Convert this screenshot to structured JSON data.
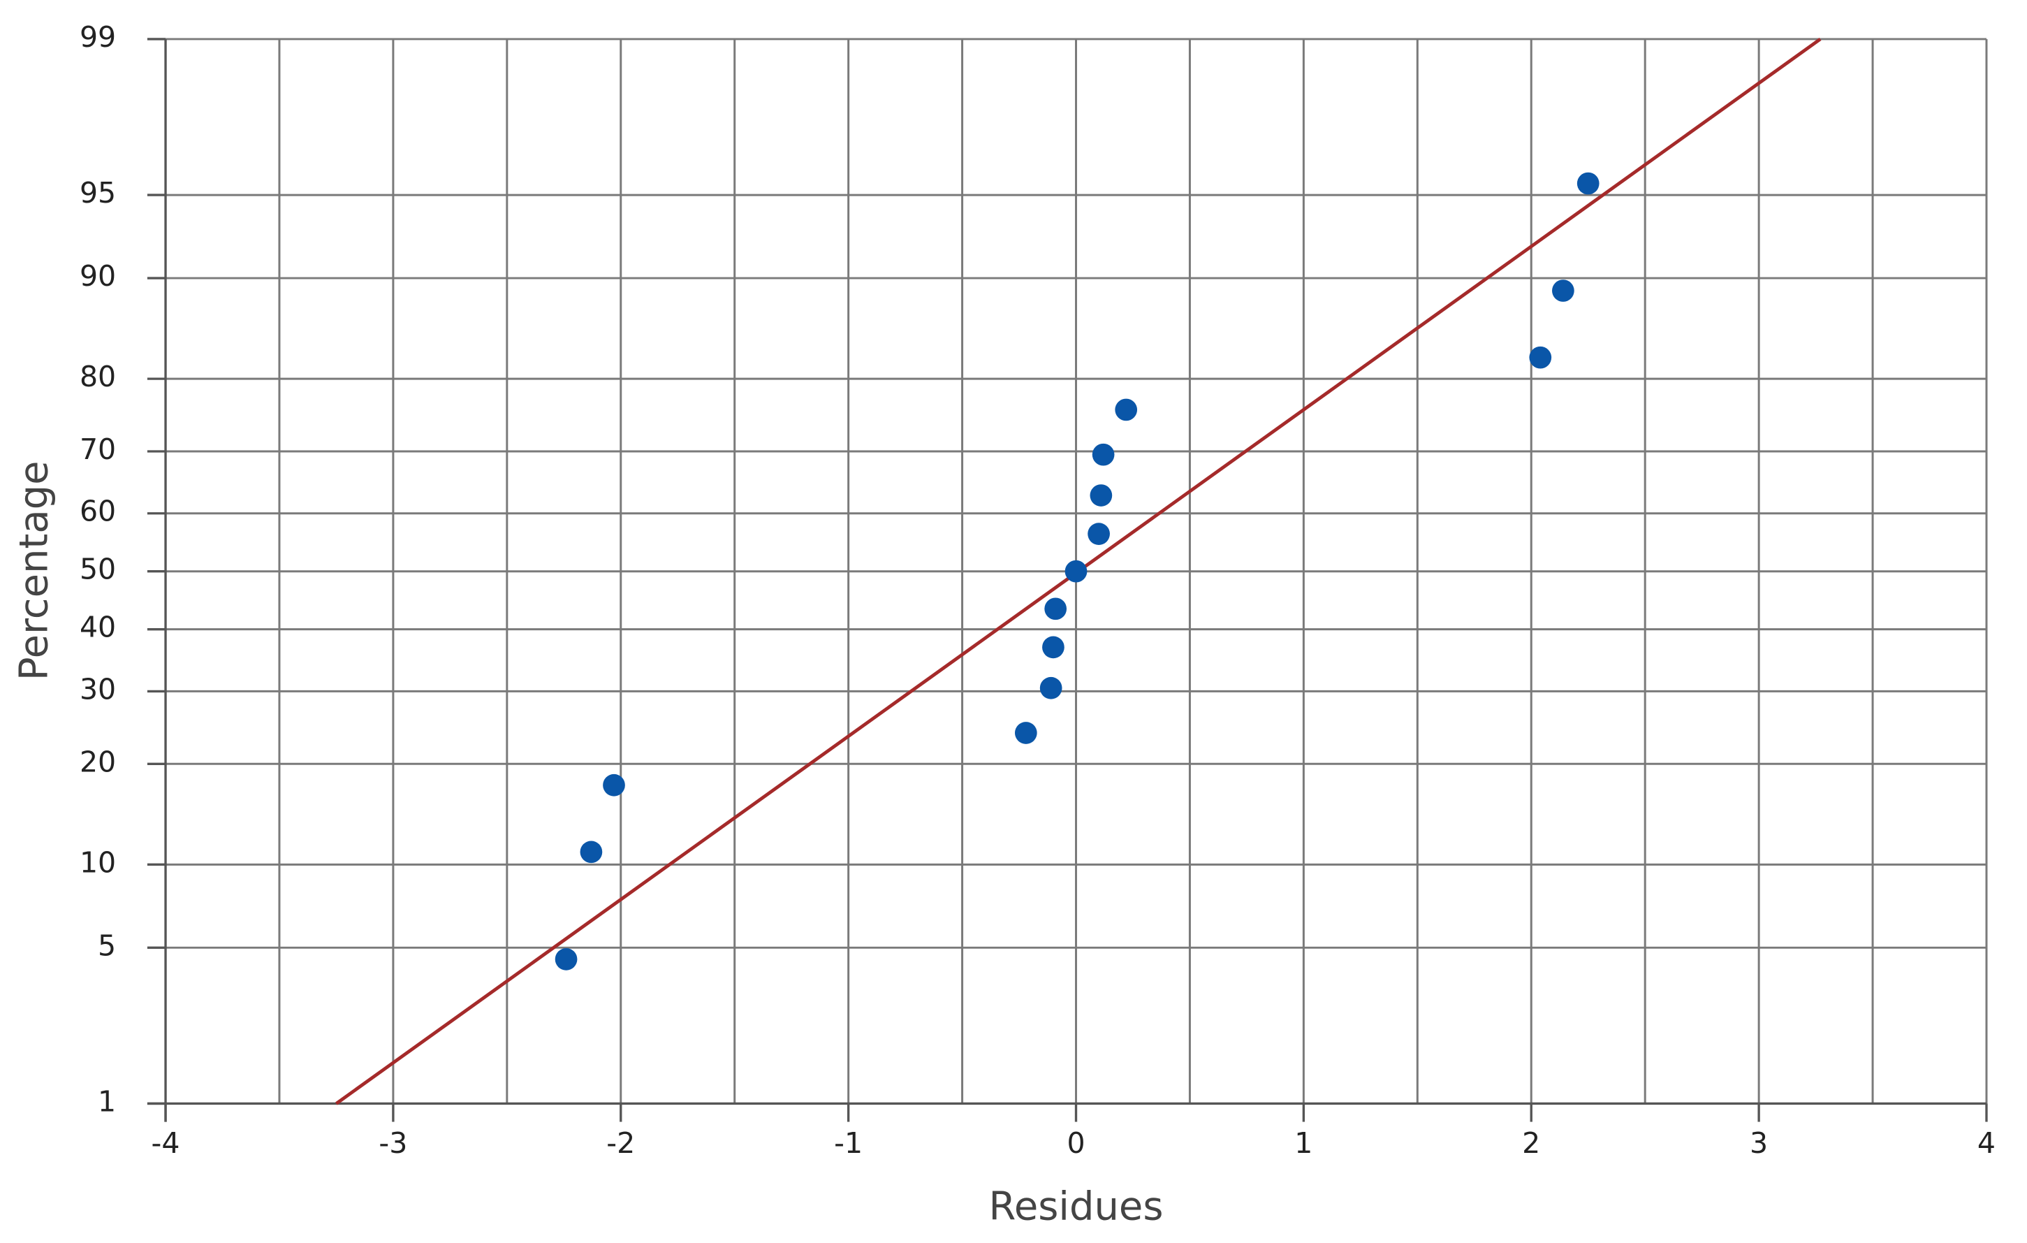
{
  "chart_data": {
    "type": "scatter",
    "x_label": "Residues",
    "y_label": "Percentage",
    "xlim": [
      -4,
      4
    ],
    "xticks": [
      -4,
      -3,
      -2,
      -1,
      0,
      1,
      2,
      3,
      4
    ],
    "x_minor_grid": [
      -3.5,
      -2.5,
      -1.5,
      -0.5,
      0.5,
      1.5,
      2.5,
      3.5
    ],
    "ylim": [
      1,
      99
    ],
    "yticks": [
      1,
      5,
      10,
      20,
      30,
      40,
      50,
      60,
      70,
      80,
      90,
      95,
      99
    ],
    "yscale": "probability",
    "grid": true,
    "points": {
      "color": "#0a56a8",
      "x": [
        -2.24,
        -2.13,
        -2.03,
        -0.22,
        -0.11,
        -0.1,
        -0.09,
        0,
        0.1,
        0.11,
        0.12,
        0.22,
        2.04,
        2.14,
        2.25
      ],
      "values": [
        4.5,
        11,
        17.5,
        24,
        30.5,
        37,
        43.5,
        50,
        56.5,
        63,
        69.5,
        76,
        82.5,
        89,
        95.5
      ]
    },
    "fit_line": {
      "color": "#a52a2a",
      "x": [
        -3.25,
        3.27
      ],
      "values": [
        1,
        99
      ]
    }
  }
}
